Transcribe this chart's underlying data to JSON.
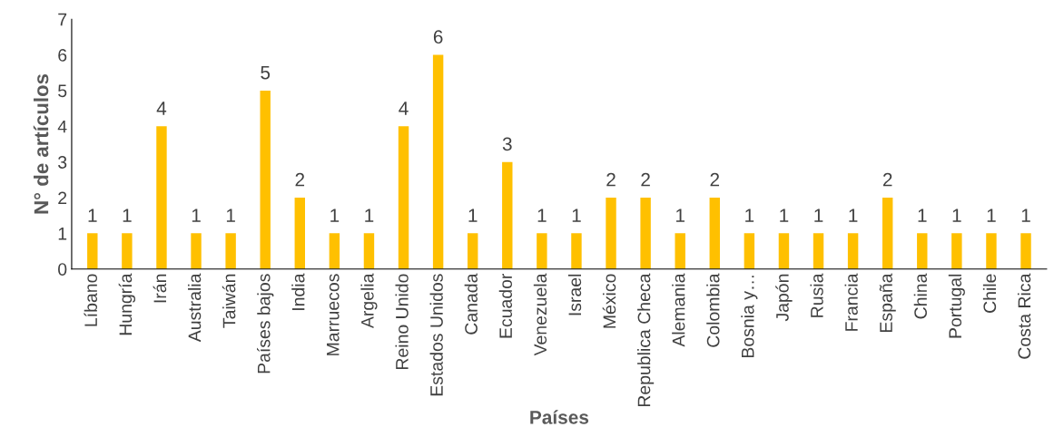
{
  "chart_data": {
    "type": "bar",
    "xlabel": "Países",
    "ylabel": "N° de artículos",
    "categories": [
      "Líbano",
      "Hungría",
      "Irán",
      "Australia",
      "Taiwán",
      "Países bajos",
      "India",
      "Marruecos",
      "Argelia",
      "Reino Unido",
      "Estados Unidos",
      "Canada",
      "Ecuador",
      "Venezuela",
      "Israel",
      "México",
      "Republica Checa",
      "Alemania",
      "Colombia",
      "Bosnia y…",
      "Japón",
      "Rusia",
      "Francia",
      "España",
      "China",
      "Portugal",
      "Chile",
      "Costa Rica"
    ],
    "values": [
      1,
      1,
      4,
      1,
      1,
      5,
      2,
      1,
      1,
      4,
      6,
      1,
      3,
      1,
      1,
      2,
      2,
      1,
      2,
      1,
      1,
      1,
      1,
      2,
      1,
      1,
      1,
      1
    ],
    "color": "#ffc000",
    "ylim": [
      0,
      7
    ],
    "yticks": [
      0,
      1,
      2,
      3,
      4,
      5,
      6,
      7
    ],
    "grid": false,
    "data_labels": true
  }
}
